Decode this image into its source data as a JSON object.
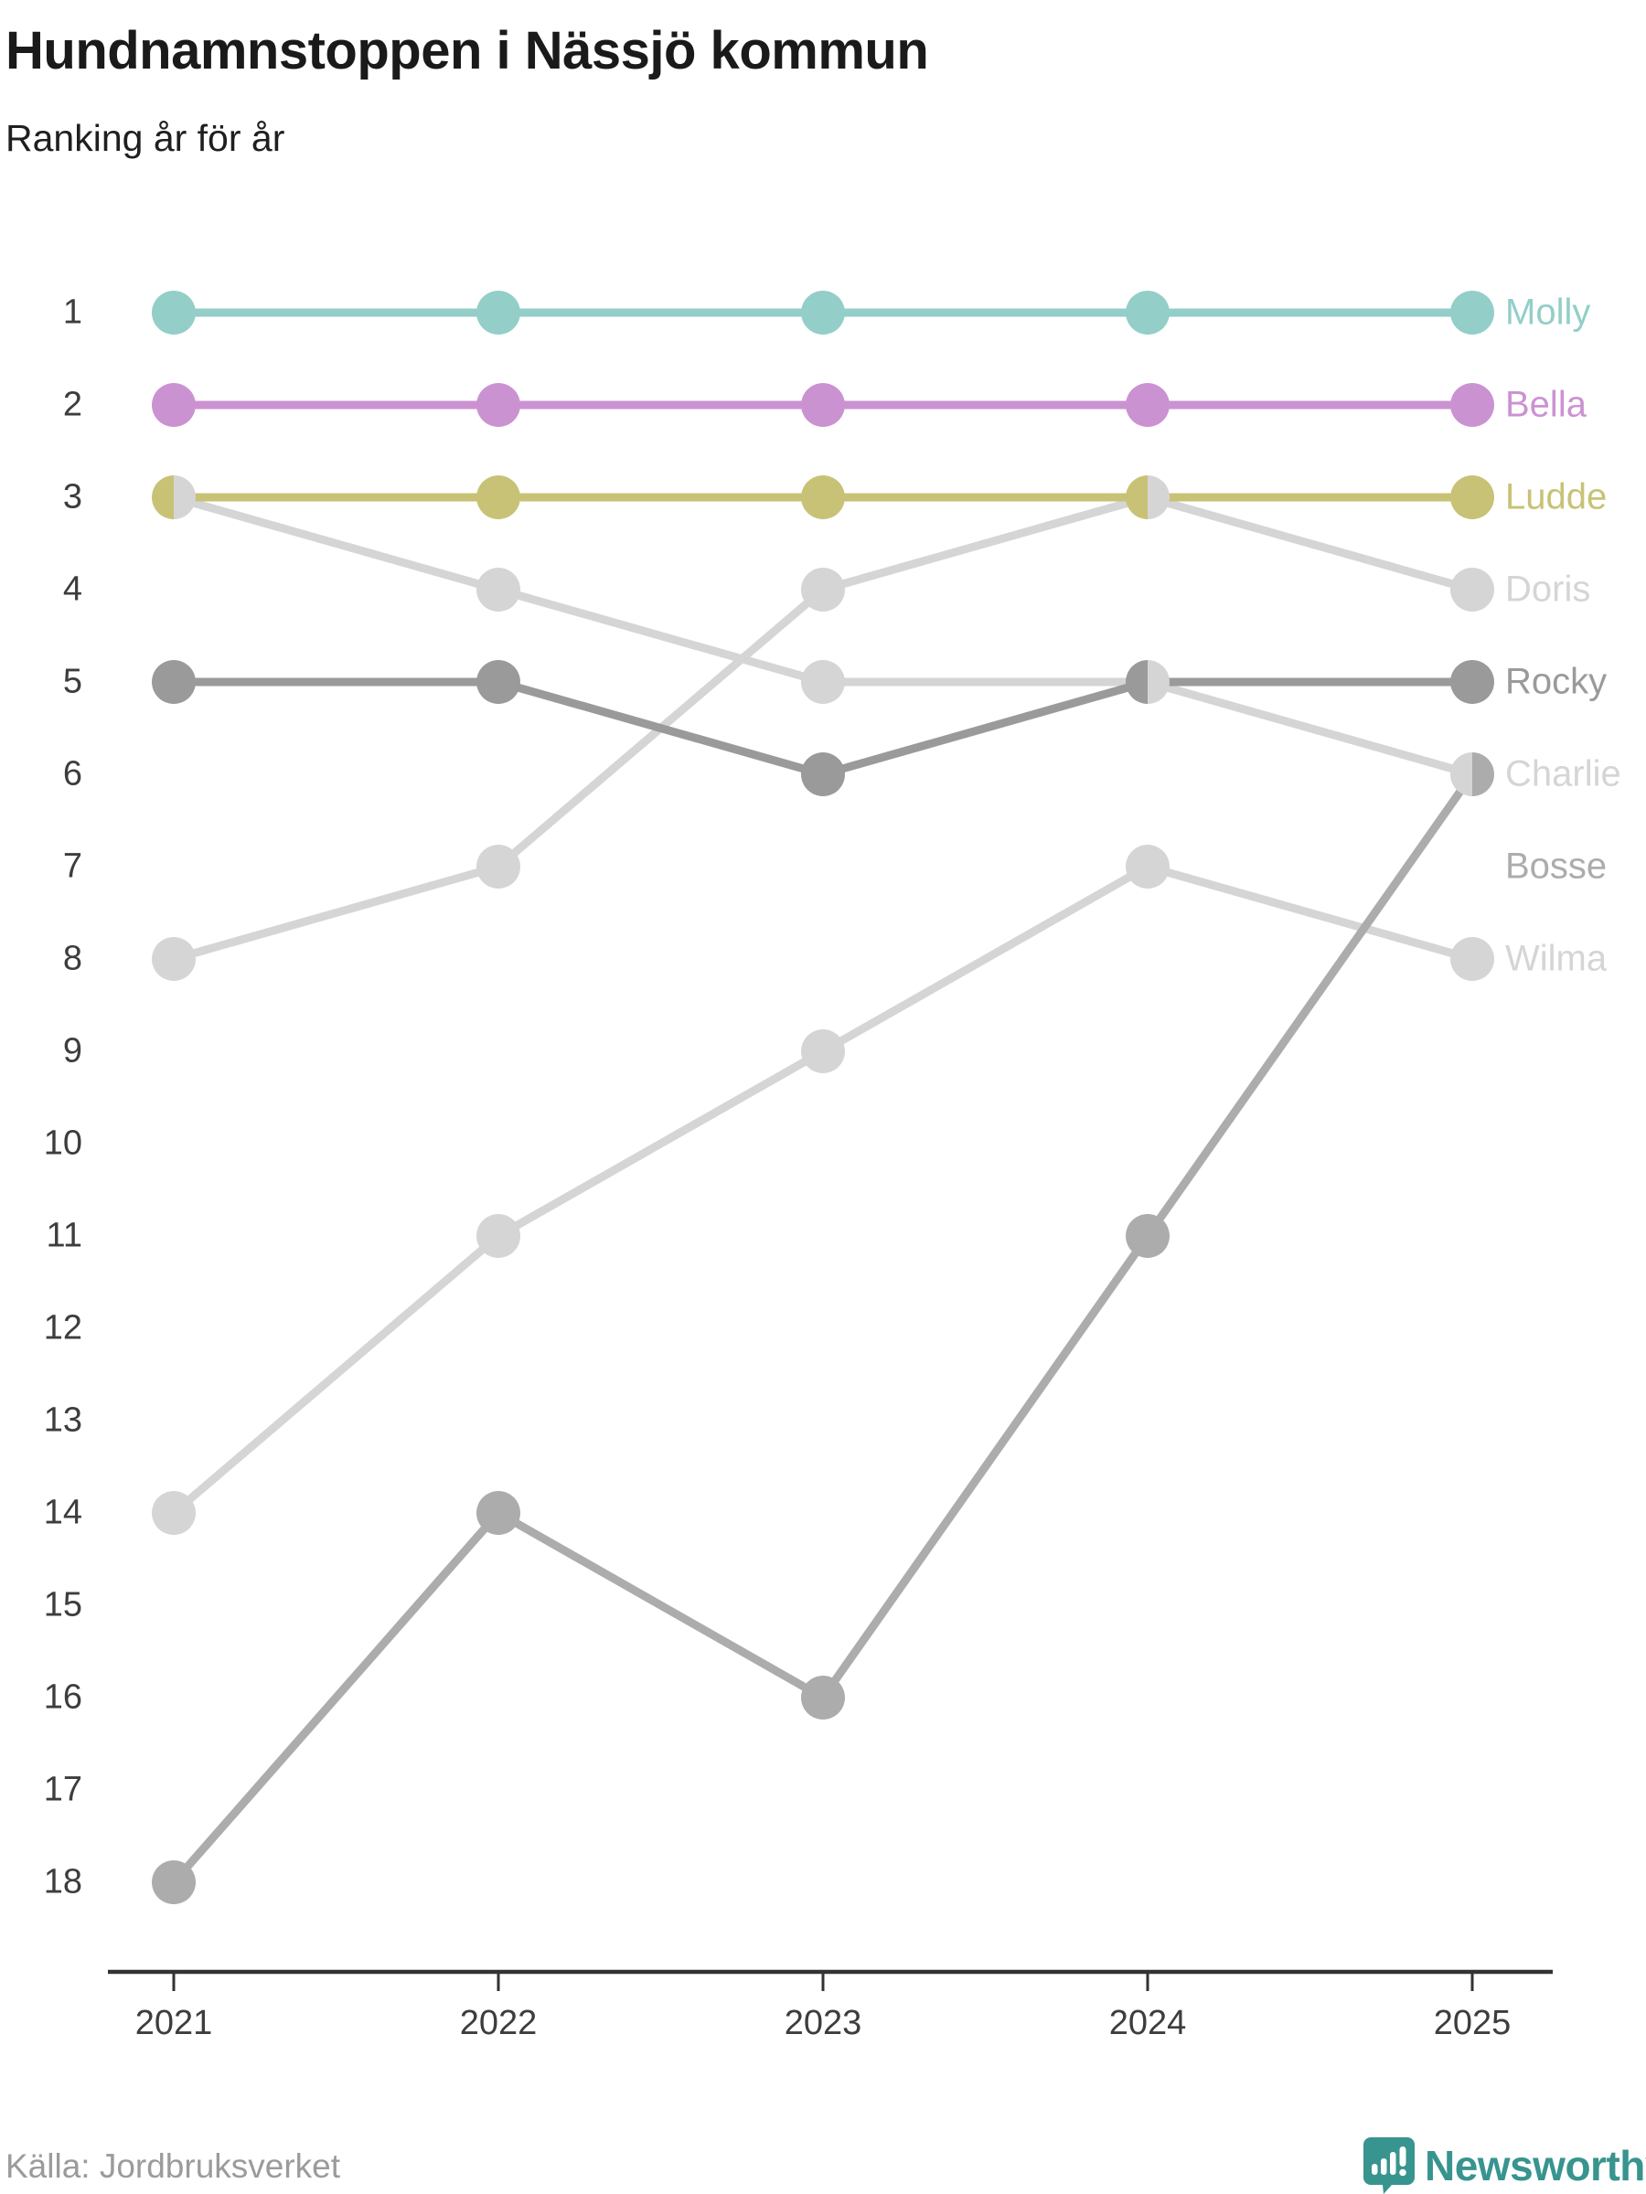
{
  "header": {
    "title": "Hundnamnstoppen i Nässjö kommun",
    "subtitle": "Ranking år för år"
  },
  "footer": {
    "source": "Källa: Jordbruksverket",
    "brand": "Newsworthy",
    "brand_color": "#38948e",
    "source_color": "#9b9b9b",
    "brand_icon": "newsworthy-bar-chart-bubble-icon"
  },
  "chart_data": {
    "type": "line",
    "variant": "bump-ranking",
    "title": "Hundnamnstoppen i Nässjö kommun",
    "subtitle": "Ranking år för år",
    "x": [
      2021,
      2022,
      2023,
      2024,
      2025
    ],
    "x_labels": [
      "2021",
      "2022",
      "2023",
      "2024",
      "2025"
    ],
    "y_ticks": [
      "1",
      "2",
      "3",
      "4",
      "5",
      "6",
      "7",
      "8",
      "9",
      "10",
      "11",
      "12",
      "13",
      "14",
      "15",
      "16",
      "17",
      "18"
    ],
    "ylim": [
      1,
      18
    ],
    "y_inverted": true,
    "grid": false,
    "legend_position": "right-of-last-point",
    "axis_color": "#333333",
    "tick_label_color": "#3d3d3d",
    "series": [
      {
        "name": "Molly",
        "color": "#93cec8",
        "values": [
          1,
          1,
          1,
          1,
          1
        ],
        "label_rank": 1
      },
      {
        "name": "Bella",
        "color": "#cb92d2",
        "values": [
          2,
          2,
          2,
          2,
          2
        ],
        "label_rank": 2
      },
      {
        "name": "Ludde",
        "color": "#c8c276",
        "values": [
          3,
          3,
          3,
          3,
          3
        ],
        "label_rank": 3
      },
      {
        "name": "Doris",
        "color": "#d5d5d5",
        "values": [
          8,
          7,
          4,
          3,
          4
        ],
        "label_rank": 4
      },
      {
        "name": "Rocky",
        "color": "#9a9a9a",
        "values": [
          5,
          5,
          6,
          5,
          5
        ],
        "label_rank": 5
      },
      {
        "name": "Charlie",
        "color": "#d5d5d5",
        "values": [
          3,
          4,
          5,
          5,
          6
        ],
        "label_rank": 6
      },
      {
        "name": "Bosse",
        "color": "#acacac",
        "values": [
          18,
          14,
          16,
          11,
          6
        ],
        "label_rank": 7
      },
      {
        "name": "Wilma",
        "color": "#d5d5d5",
        "values": [
          14,
          11,
          9,
          7,
          8
        ],
        "label_rank": 8
      }
    ],
    "shared_dots": [
      {
        "year": 2021,
        "rank": 3,
        "left": "Ludde",
        "right": "Charlie"
      },
      {
        "year": 2024,
        "rank": 3,
        "left": "Ludde",
        "right": "Doris"
      },
      {
        "year": 2024,
        "rank": 5,
        "left": "Rocky",
        "right": "Charlie"
      },
      {
        "year": 2025,
        "rank": 6,
        "left": "Charlie",
        "right": "Bosse"
      }
    ]
  }
}
